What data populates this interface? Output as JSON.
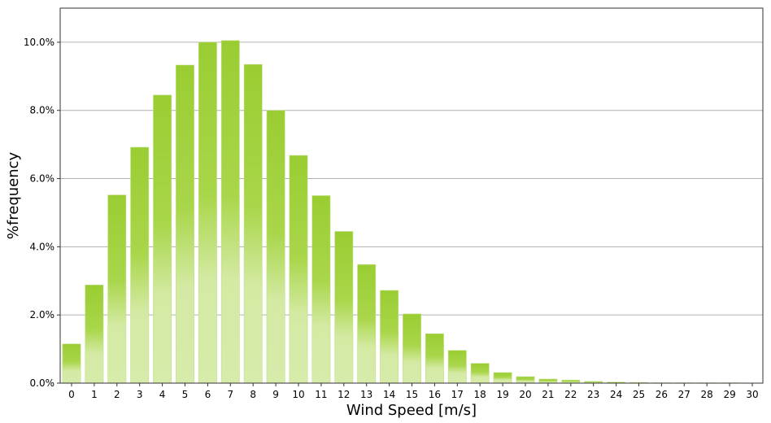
{
  "chart_data": {
    "type": "bar",
    "title": "",
    "xlabel": "Wind Speed [m/s]",
    "ylabel": "%frequency",
    "ylim": [
      0,
      11.0
    ],
    "yticks": [
      0,
      2,
      4,
      6,
      8,
      10
    ],
    "ytick_labels": [
      "0.0%",
      "2.0%",
      "4.0%",
      "6.0%",
      "8.0%",
      "10.0%"
    ],
    "grid": "horizontal",
    "bar_color_top": "#9acd32",
    "bar_color_bottom": "#d4eaa4",
    "grid_color": "#b0b0b0",
    "categories": [
      "0",
      "1",
      "2",
      "3",
      "4",
      "5",
      "6",
      "7",
      "8",
      "9",
      "10",
      "11",
      "12",
      "13",
      "14",
      "15",
      "16",
      "17",
      "18",
      "19",
      "20",
      "21",
      "22",
      "23",
      "24",
      "25",
      "26",
      "27",
      "28",
      "29",
      "30"
    ],
    "values": [
      1.15,
      2.88,
      5.52,
      6.92,
      8.45,
      9.33,
      10.0,
      10.05,
      9.35,
      8.0,
      6.68,
      5.5,
      4.45,
      3.48,
      2.72,
      2.03,
      1.45,
      0.96,
      0.58,
      0.31,
      0.19,
      0.12,
      0.09,
      0.05,
      0.03,
      0.02,
      0.01,
      0.01,
      0.01,
      0.01,
      0.0
    ]
  }
}
